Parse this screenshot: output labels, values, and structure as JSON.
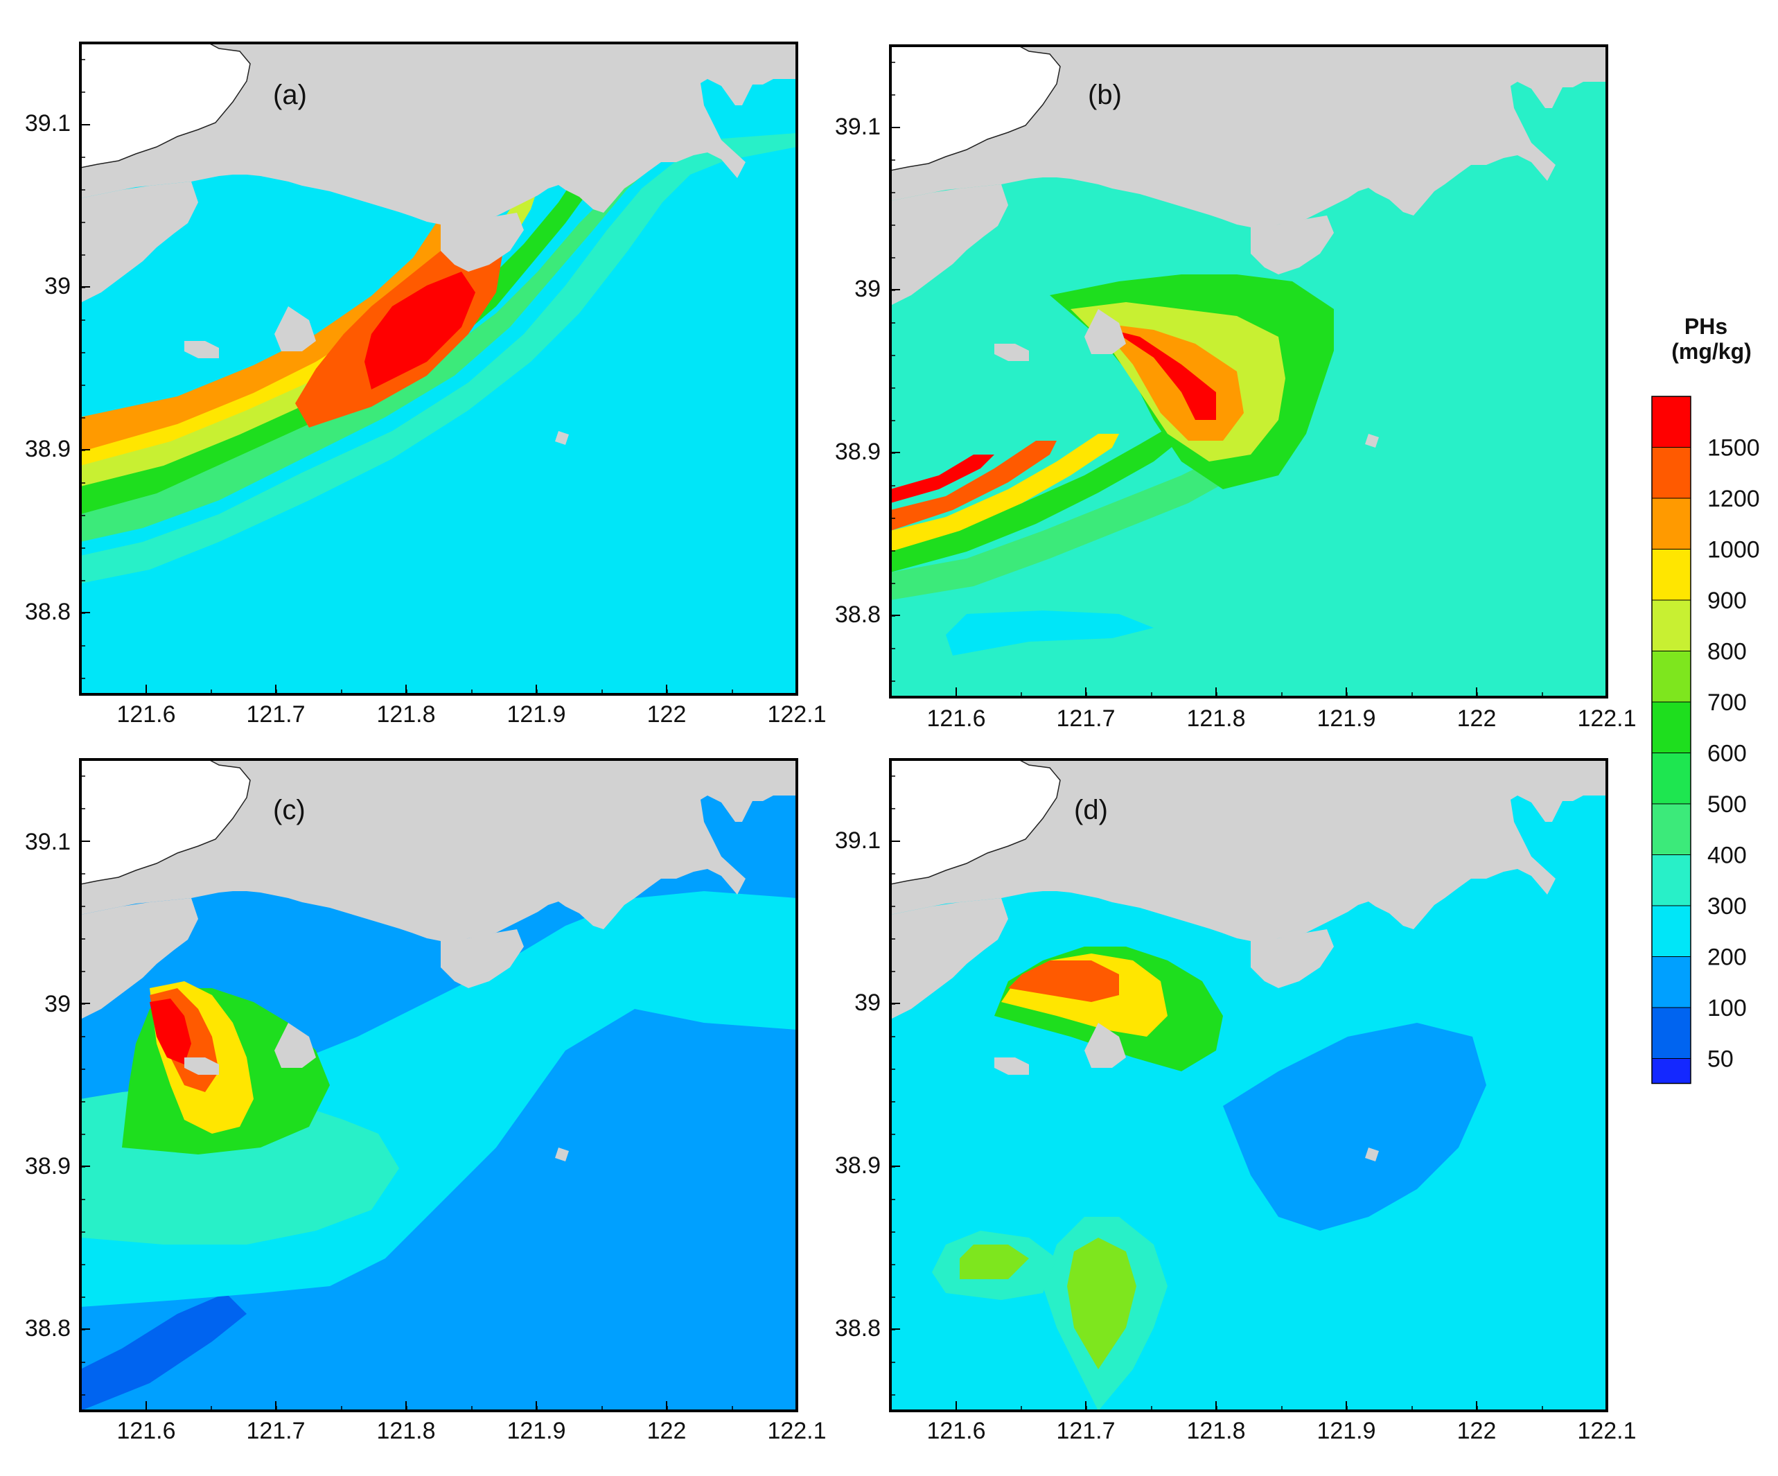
{
  "figure": {
    "panels": [
      {
        "label": "(a)",
        "variant": "a"
      },
      {
        "label": "(b)",
        "variant": "b"
      },
      {
        "label": "(c)",
        "variant": "c"
      },
      {
        "label": "(d)",
        "variant": "d"
      }
    ],
    "x_ticks": [
      "121.6",
      "121.7",
      "121.8",
      "121.9",
      "122",
      "122.1"
    ],
    "y_ticks": [
      "39.1",
      "39",
      "38.9",
      "38.8"
    ],
    "legend": {
      "title_line1": "PHs",
      "title_line2": "(mg/kg)",
      "levels": [
        {
          "label": "1500",
          "color": "#ff0000"
        },
        {
          "label": "1200",
          "color": "#ff5a00"
        },
        {
          "label": "1000",
          "color": "#ff9a00"
        },
        {
          "label": "900",
          "color": "#ffe600"
        },
        {
          "label": "800",
          "color": "#c8f032"
        },
        {
          "label": "700",
          "color": "#7ee61e"
        },
        {
          "label": "600",
          "color": "#1ede1e"
        },
        {
          "label": "500",
          "color": "#1ee650"
        },
        {
          "label": "400",
          "color": "#3cea7a"
        },
        {
          "label": "300",
          "color": "#28f0c8"
        },
        {
          "label": "200",
          "color": "#00e6f8"
        },
        {
          "label": "100",
          "color": "#00a0ff"
        },
        {
          "label": "50",
          "color": "#0064f0"
        }
      ],
      "bottom_color": "#1428ff"
    },
    "colors": {
      "land": "#d2d2d2",
      "frame": "#000000",
      "blank": "#ffffff"
    }
  }
}
